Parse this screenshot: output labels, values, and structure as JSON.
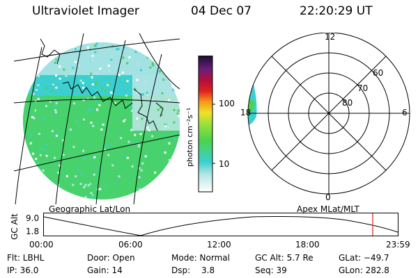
{
  "header": {
    "instrument": "Ultraviolet Imager",
    "date": "04 Dec 07",
    "time": "22:20:29 UT"
  },
  "colorbar": {
    "unit_label": "photon cm⁻²s⁻¹",
    "tick_100": "100",
    "tick_10": "10"
  },
  "polar": {
    "mlt_12": "12",
    "mlt_18": "18",
    "mlt_6": "6",
    "mlt_0": "0",
    "lat_60": "60",
    "lat_70": "70",
    "lat_80": "80"
  },
  "labels": {
    "geographic": "Geographic Lat/Lon",
    "apex": "Apex  MLat/MLT"
  },
  "orbit_plot": {
    "ylabel": "GC Alt",
    "y_top": "9.0",
    "y_bottom": "1.8",
    "x_ticks": [
      "00:00",
      "06:00",
      "12:00",
      "18:00",
      "23:59"
    ]
  },
  "info": {
    "flt": "Flt: LBHL",
    "ip": "IP: 36.0",
    "door": "Door: Open",
    "gain": "Gain: 14",
    "mode": "Mode: Normal",
    "dsp_label": "Dsp:",
    "dsp_value": "3.8",
    "gc_alt": "GC Alt: 5.7 Re",
    "seq": "Seq: 39",
    "glat": "GLat: −49.7",
    "glon": "GLon: 282.8"
  },
  "colors": {
    "green": "#4cd34c",
    "cyan": "#3ccfcf",
    "pale": "#bde6e6",
    "marker": "#d62020"
  }
}
